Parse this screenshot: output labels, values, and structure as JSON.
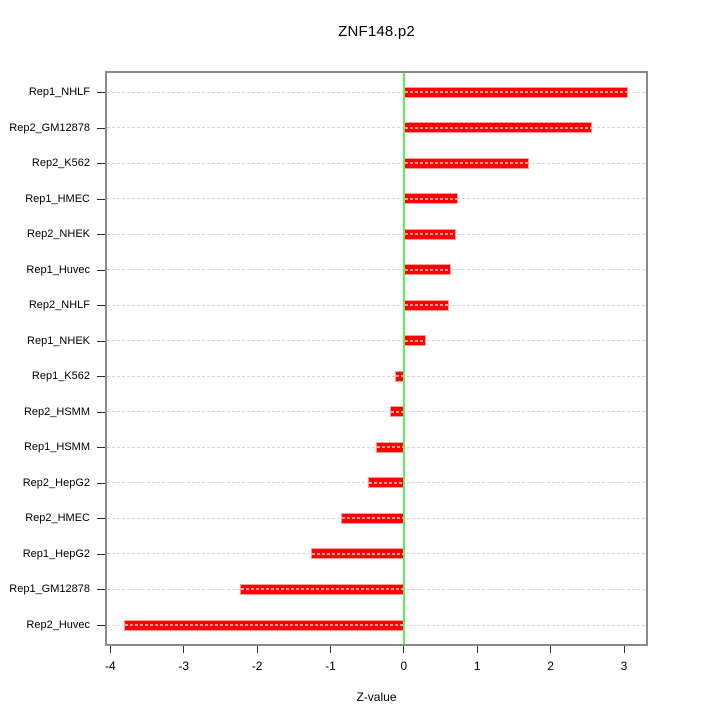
{
  "chart_data": {
    "type": "bar",
    "orientation": "horizontal",
    "title": "ZNF148.p2",
    "xlabel": "Z-value",
    "categories": [
      "Rep1_NHLF",
      "Rep2_GM12878",
      "Rep2_K562",
      "Rep1_HMEC",
      "Rep2_NHEK",
      "Rep1_Huvec",
      "Rep2_NHLF",
      "Rep1_NHEK",
      "Rep1_K562",
      "Rep2_HSMM",
      "Rep1_HSMM",
      "Rep2_HepG2",
      "Rep2_HMEC",
      "Rep1_HepG2",
      "Rep1_GM12878",
      "Rep2_Huvec"
    ],
    "values": [
      3.05,
      2.57,
      1.7,
      0.74,
      0.71,
      0.64,
      0.61,
      0.3,
      -0.12,
      -0.19,
      -0.38,
      -0.49,
      -0.85,
      -1.26,
      -2.24,
      -3.82
    ],
    "xlim": [
      -4.073,
      3.327
    ],
    "x_ticks": [
      -4,
      -3,
      -2,
      -1,
      0,
      1,
      2,
      3
    ],
    "x_tick_labels": [
      "-4",
      "-3",
      "-2",
      "-1",
      "0",
      "1",
      "2",
      "3"
    ],
    "grid": true,
    "bar_color": "#ff0000",
    "bar_border_color": "#ff9d9d",
    "zero_line_color": "#58f558",
    "gridline_color": "#d6d6d6",
    "axis_box_color": "#8a8a8a"
  }
}
